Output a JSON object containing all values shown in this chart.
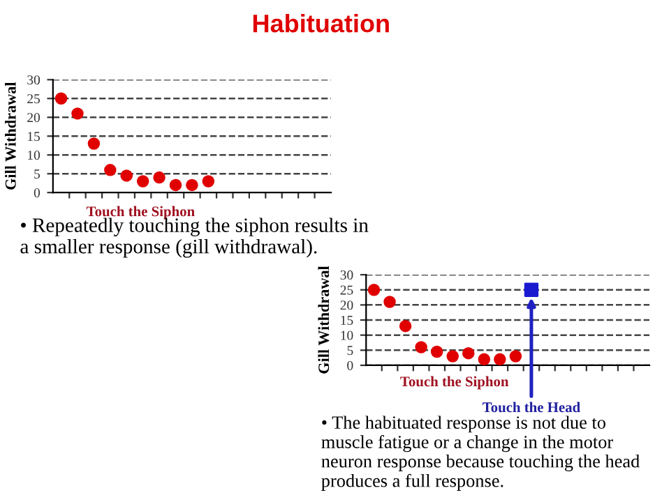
{
  "chart_data": [
    {
      "type": "scatter",
      "title": "Habituation",
      "ylabel": "Gill Withdrawal",
      "categories": [
        null,
        null,
        null,
        null,
        null,
        null,
        null,
        null,
        null,
        null,
        null,
        null,
        null,
        null,
        null,
        null,
        null
      ],
      "series": [
        {
          "color": "#e00000",
          "marker": "circle",
          "values": [
            25,
            21,
            13,
            6,
            4.5,
            3,
            4,
            2,
            2,
            3,
            null,
            null,
            null,
            null,
            null,
            null,
            null
          ]
        }
      ],
      "ylim": [
        0,
        30
      ],
      "yticks": [
        0,
        5,
        10,
        15,
        20,
        25,
        30
      ],
      "grid": "y",
      "line_style": "dashed",
      "annotations": [
        "Touch the Siphon",
        "• Repeatedly touching the siphon results in a smaller response (gill withdrawal)."
      ]
    },
    {
      "type": "scatter",
      "ylabel": "Gill Withdrawal",
      "categories": [
        null,
        null,
        null,
        null,
        null,
        null,
        null,
        null,
        null,
        null,
        null,
        null,
        null,
        null,
        null,
        null,
        null,
        null
      ],
      "series": [
        {
          "color": "#e00000",
          "marker": "circle",
          "values": [
            25,
            21,
            13,
            6,
            4.5,
            3,
            4,
            2,
            2,
            3,
            null,
            null,
            null,
            null,
            null,
            null,
            null,
            null
          ]
        },
        {
          "color": "#1a1ad0",
          "marker": "square",
          "values": [
            null,
            null,
            null,
            null,
            null,
            null,
            null,
            null,
            null,
            null,
            25,
            null,
            null,
            null,
            null,
            null,
            null,
            null
          ]
        }
      ],
      "ylim": [
        0,
        30
      ],
      "yticks": [
        0,
        5,
        10,
        15,
        20,
        25,
        30
      ],
      "grid": "y",
      "line_style": "dashed",
      "annotations": [
        "Touch the Siphon",
        "Touch the Head",
        "• The habituated response is not due to muscle fatigue or a change in the motor neuron response because touching the head produces a full response."
      ]
    }
  ]
}
